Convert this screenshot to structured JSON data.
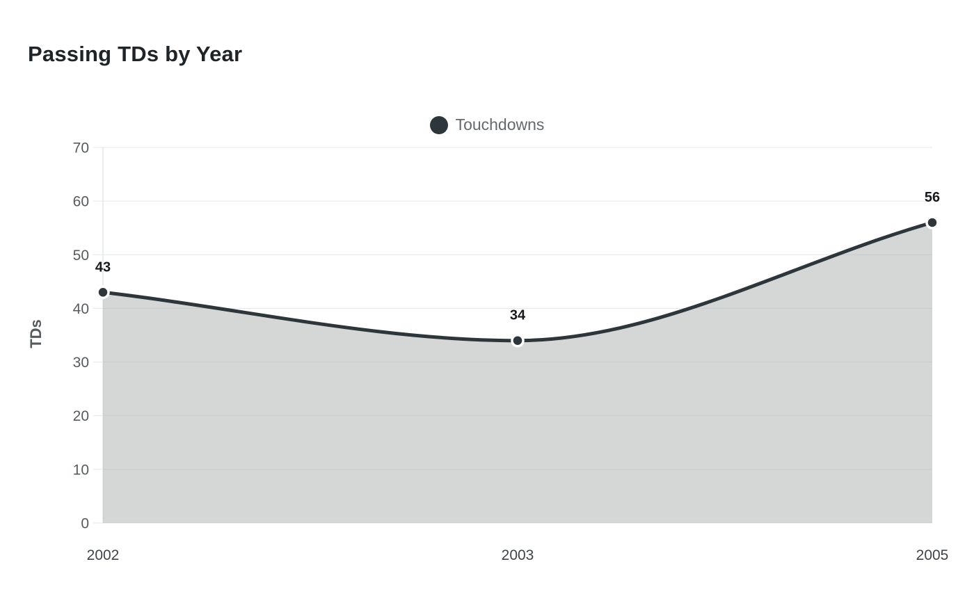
{
  "title": "Passing TDs by Year",
  "legend": {
    "label": "Touchdowns"
  },
  "chart_data": {
    "type": "area",
    "categories": [
      "2002",
      "2003",
      "2005"
    ],
    "series": [
      {
        "name": "Touchdowns",
        "values": [
          43,
          34,
          56
        ]
      }
    ],
    "point_labels": [
      "43",
      "34",
      "56"
    ],
    "title": "Passing TDs by Year",
    "xlabel": "",
    "ylabel": "TDs",
    "ylim": [
      0,
      70
    ],
    "yticks": [
      0,
      10,
      20,
      30,
      40,
      50,
      60,
      70
    ],
    "grid": true,
    "legend_position": "top-center",
    "colors": {
      "series": "#2d363b",
      "area": "#acafaf",
      "area_opacity": 0.5,
      "grid": "#e4e7e7",
      "point_ring": "#ffffff"
    }
  }
}
